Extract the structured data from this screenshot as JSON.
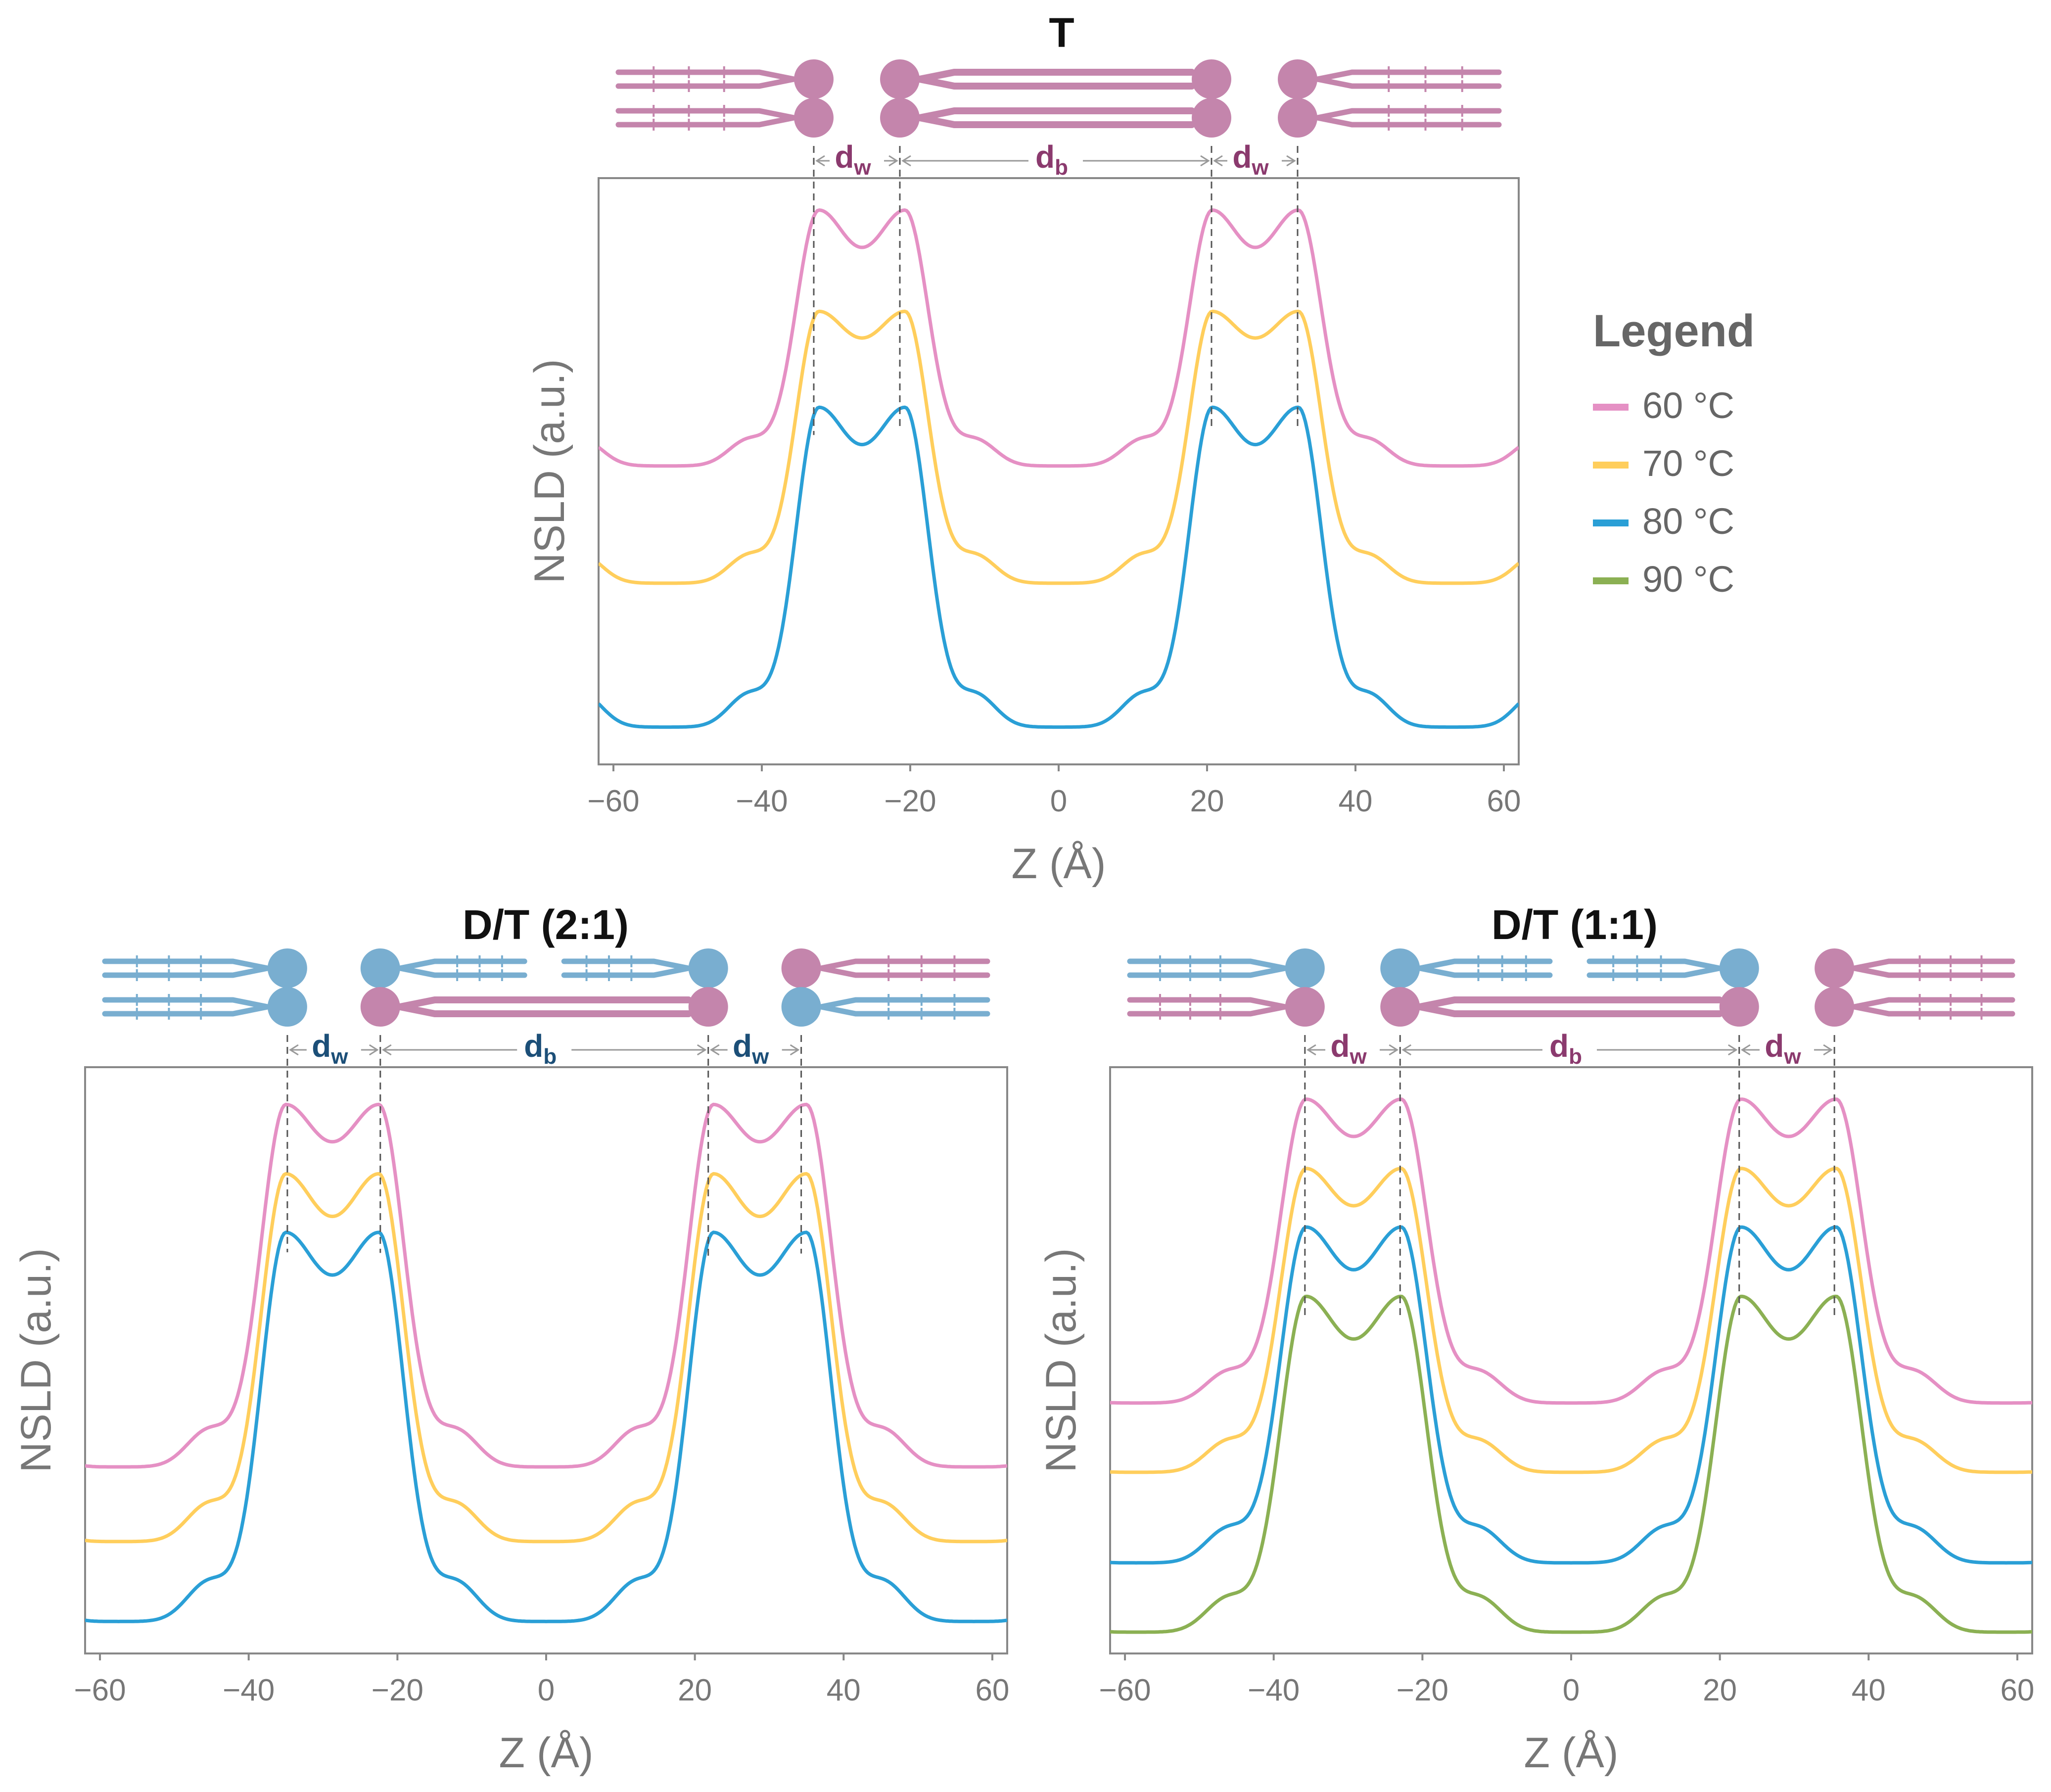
{
  "legend": {
    "title": "Legend",
    "entries": [
      {
        "label": "60 °C",
        "color": "#e590c4"
      },
      {
        "label": "70 °C",
        "color": "#ffce5c"
      },
      {
        "label": "80 °C",
        "color": "#2a9fd6"
      },
      {
        "label": "90 °C",
        "color": "#8bb053"
      }
    ]
  },
  "colors": {
    "lipid_T": "#c485ac",
    "lipid_D": "#79aed0",
    "dim_T": "#8b3a6e",
    "dim_D": "#1c4f78"
  },
  "dimension_labels": {
    "dw_main": "d",
    "dw_sub": "w",
    "db_main": "d",
    "db_sub": "b"
  },
  "chart_data": [
    {
      "type": "line",
      "title": "T",
      "xlabel": "Z (Å)",
      "ylabel": "NSLD (a.u.)",
      "xlim": [
        -62,
        62
      ],
      "xticks": [
        -60,
        -40,
        -20,
        0,
        20,
        40,
        60
      ],
      "xtick_labels": [
        "−60",
        "−40",
        "−20",
        "0",
        "20",
        "40",
        "60"
      ],
      "grid": false,
      "period": 53,
      "dw": 11.6,
      "series": [
        {
          "name": "60 °C",
          "color": "#e590c4",
          "peak": 1.0,
          "trough": 0.52,
          "mid": 0.93
        },
        {
          "name": "70 °C",
          "color": "#ffce5c",
          "peak": 0.81,
          "trough": 0.3,
          "mid": 0.76
        },
        {
          "name": "80 °C",
          "color": "#2a9fd6",
          "peak": 0.63,
          "trough": 0.03,
          "mid": 0.56
        }
      ],
      "dimensions": {
        "dw_left": [
          -33,
          -21.4
        ],
        "db": [
          -21.4,
          20.6
        ],
        "dw_right": [
          20.6,
          32.2
        ]
      },
      "molecule": "T"
    },
    {
      "type": "line",
      "title": "D/T (2:1)",
      "xlabel": "Z (Å)",
      "ylabel": "NSLD (a.u.)",
      "xlim": [
        -62,
        62
      ],
      "xticks": [
        -60,
        -40,
        -20,
        0,
        20,
        40,
        60
      ],
      "xtick_labels": [
        "−60",
        "−40",
        "−20",
        "0",
        "20",
        "40",
        "60"
      ],
      "grid": false,
      "period": 57.5,
      "dw": 12.5,
      "series": [
        {
          "name": "60 °C",
          "color": "#e590c4",
          "peak": 0.99,
          "trough": 0.31,
          "mid": 0.92
        },
        {
          "name": "70 °C",
          "color": "#ffce5c",
          "peak": 0.86,
          "trough": 0.17,
          "mid": 0.78
        },
        {
          "name": "80 °C",
          "color": "#2a9fd6",
          "peak": 0.75,
          "trough": 0.02,
          "mid": 0.67
        }
      ],
      "dimensions": {
        "dw_left": [
          -34.8,
          -22.3
        ],
        "db": [
          -22.3,
          21.8
        ],
        "dw_right": [
          21.8,
          34.3
        ]
      },
      "molecule": "DT21"
    },
    {
      "type": "line",
      "title": "D/T (1:1)",
      "xlabel": "Z (Å)",
      "ylabel": "NSLD (a.u.)",
      "xlim": [
        -62,
        62
      ],
      "xticks": [
        -60,
        -40,
        -20,
        0,
        20,
        40,
        60
      ],
      "xtick_labels": [
        "−60",
        "−40",
        "−20",
        "0",
        "20",
        "40",
        "60"
      ],
      "grid": false,
      "period": 58.5,
      "dw": 12.8,
      "series": [
        {
          "name": "60 °C",
          "color": "#e590c4",
          "peak": 1.0,
          "trough": 0.43,
          "mid": 0.93
        },
        {
          "name": "70 °C",
          "color": "#ffce5c",
          "peak": 0.87,
          "trough": 0.3,
          "mid": 0.8
        },
        {
          "name": "80 °C",
          "color": "#2a9fd6",
          "peak": 0.76,
          "trough": 0.13,
          "mid": 0.68
        },
        {
          "name": "90 °C",
          "color": "#8bb053",
          "peak": 0.63,
          "trough": 0.0,
          "mid": 0.55
        }
      ],
      "dimensions": {
        "dw_left": [
          -35.8,
          -23.0
        ],
        "db": [
          -23.0,
          22.6
        ],
        "dw_right": [
          22.6,
          35.4
        ]
      },
      "molecule": "DT11"
    }
  ]
}
